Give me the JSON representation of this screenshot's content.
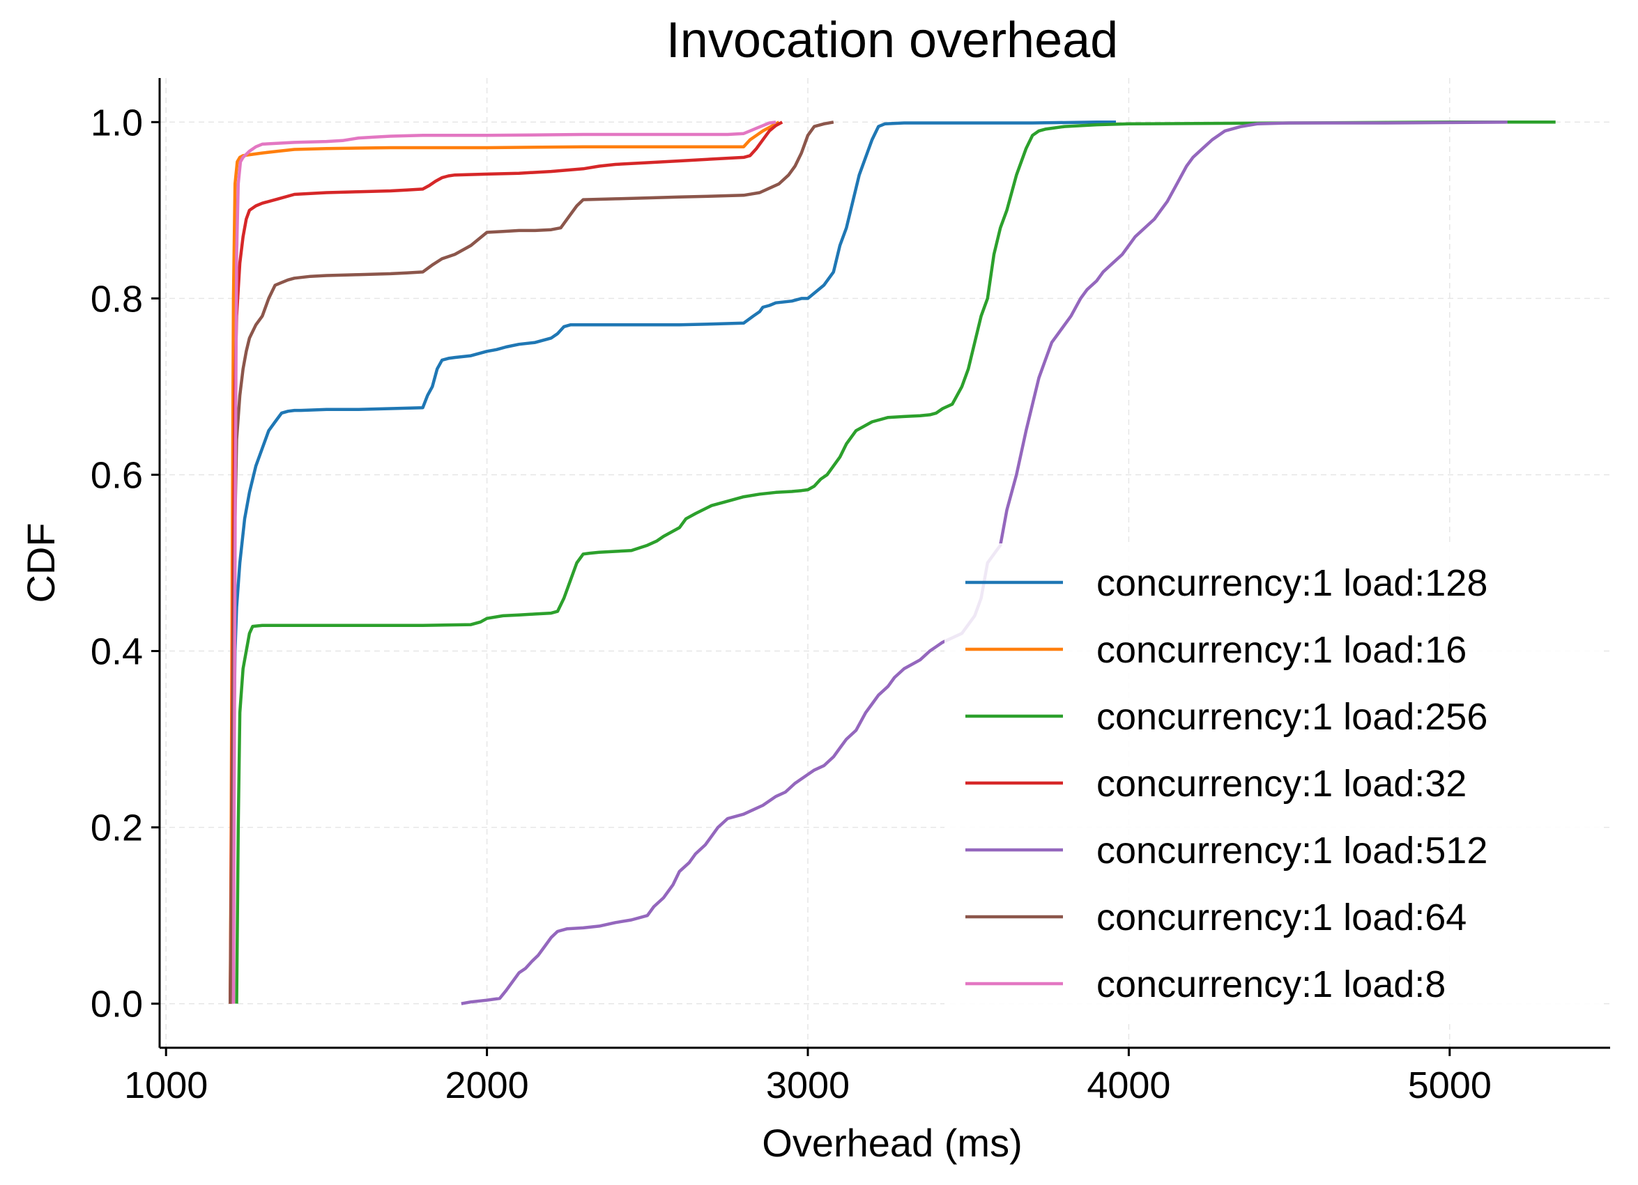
{
  "chart_data": {
    "type": "line",
    "title": "Invocation overhead",
    "xlabel": "Overhead (ms)",
    "ylabel": "CDF",
    "xlim": [
      980,
      5500
    ],
    "ylim": [
      -0.05,
      1.05
    ],
    "xticks": [
      1000,
      2000,
      3000,
      4000,
      5000
    ],
    "xtick_labels": [
      "1000",
      "2000",
      "3000",
      "4000",
      "5000"
    ],
    "yticks": [
      0.0,
      0.2,
      0.4,
      0.6,
      0.8,
      1.0
    ],
    "ytick_labels": [
      "0.0",
      "0.2",
      "0.4",
      "0.6",
      "0.8",
      "1.0"
    ],
    "grid": true,
    "legend_position": "lower-right",
    "series": [
      {
        "name": "concurrency:1 load:128",
        "color": "#1f77b4",
        "x": [
          1200,
          1205,
          1210,
          1215,
          1220,
          1230,
          1245,
          1260,
          1280,
          1300,
          1320,
          1340,
          1360,
          1380,
          1400,
          1420,
          1500,
          1600,
          1700,
          1800,
          1815,
          1830,
          1845,
          1860,
          1880,
          1900,
          1950,
          2000,
          2030,
          2060,
          2100,
          2150,
          2200,
          2220,
          2240,
          2260,
          2300,
          2400,
          2500,
          2600,
          2700,
          2800,
          2830,
          2850,
          2860,
          2880,
          2900,
          2950,
          2980,
          3000,
          3050,
          3080,
          3100,
          3120,
          3140,
          3160,
          3180,
          3200,
          3220,
          3240,
          3300,
          3500,
          3700,
          3900,
          3960
        ],
        "y": [
          0.0,
          0.1,
          0.25,
          0.4,
          0.45,
          0.5,
          0.55,
          0.58,
          0.61,
          0.63,
          0.65,
          0.66,
          0.67,
          0.672,
          0.673,
          0.673,
          0.674,
          0.674,
          0.675,
          0.676,
          0.69,
          0.7,
          0.72,
          0.73,
          0.732,
          0.733,
          0.735,
          0.74,
          0.742,
          0.745,
          0.748,
          0.75,
          0.755,
          0.76,
          0.768,
          0.77,
          0.77,
          0.77,
          0.77,
          0.77,
          0.771,
          0.772,
          0.78,
          0.785,
          0.79,
          0.792,
          0.795,
          0.797,
          0.8,
          0.8,
          0.815,
          0.83,
          0.86,
          0.88,
          0.91,
          0.94,
          0.96,
          0.98,
          0.995,
          0.998,
          0.999,
          0.999,
          0.999,
          1.0,
          1.0
        ]
      },
      {
        "name": "concurrency:1 load:16",
        "color": "#ff7f0e",
        "x": [
          1200,
          1203,
          1206,
          1210,
          1215,
          1222,
          1230,
          1240,
          1260,
          1300,
          1350,
          1400,
          1500,
          1700,
          2000,
          2300,
          2600,
          2800,
          2820,
          2840,
          2860,
          2880,
          2900,
          2910
        ],
        "y": [
          0.0,
          0.2,
          0.5,
          0.8,
          0.93,
          0.955,
          0.96,
          0.962,
          0.963,
          0.965,
          0.967,
          0.969,
          0.97,
          0.971,
          0.971,
          0.972,
          0.972,
          0.972,
          0.98,
          0.985,
          0.99,
          0.994,
          0.998,
          1.0
        ]
      },
      {
        "name": "concurrency:1 load:256",
        "color": "#2ca02c",
        "x": [
          1220,
          1225,
          1230,
          1240,
          1250,
          1260,
          1270,
          1300,
          1500,
          1800,
          1950,
          1980,
          2000,
          2050,
          2100,
          2150,
          2200,
          2220,
          2240,
          2260,
          2280,
          2300,
          2320,
          2350,
          2400,
          2450,
          2500,
          2530,
          2550,
          2600,
          2620,
          2650,
          2700,
          2750,
          2800,
          2850,
          2900,
          2950,
          2980,
          3000,
          3020,
          3040,
          3060,
          3080,
          3100,
          3120,
          3150,
          3200,
          3250,
          3300,
          3350,
          3380,
          3400,
          3420,
          3450,
          3480,
          3500,
          3520,
          3540,
          3560,
          3580,
          3600,
          3620,
          3650,
          3680,
          3700,
          3720,
          3740,
          3760,
          3800,
          3900,
          4000,
          4500,
          5000,
          5330
        ],
        "y": [
          0.0,
          0.2,
          0.33,
          0.38,
          0.4,
          0.42,
          0.428,
          0.429,
          0.429,
          0.429,
          0.43,
          0.433,
          0.437,
          0.44,
          0.441,
          0.442,
          0.443,
          0.445,
          0.46,
          0.48,
          0.5,
          0.51,
          0.511,
          0.512,
          0.513,
          0.514,
          0.52,
          0.525,
          0.53,
          0.54,
          0.55,
          0.556,
          0.565,
          0.57,
          0.575,
          0.578,
          0.58,
          0.581,
          0.582,
          0.583,
          0.587,
          0.595,
          0.6,
          0.61,
          0.62,
          0.635,
          0.65,
          0.66,
          0.665,
          0.666,
          0.667,
          0.668,
          0.67,
          0.675,
          0.68,
          0.7,
          0.72,
          0.75,
          0.78,
          0.8,
          0.85,
          0.88,
          0.9,
          0.94,
          0.97,
          0.985,
          0.99,
          0.992,
          0.993,
          0.995,
          0.997,
          0.998,
          0.999,
          1.0,
          1.0
        ]
      },
      {
        "name": "concurrency:1 load:32",
        "color": "#d62728",
        "x": [
          1200,
          1205,
          1210,
          1215,
          1220,
          1230,
          1240,
          1250,
          1260,
          1280,
          1300,
          1350,
          1400,
          1500,
          1600,
          1700,
          1750,
          1800,
          1820,
          1840,
          1860,
          1880,
          1900,
          2000,
          2100,
          2200,
          2300,
          2350,
          2400,
          2500,
          2600,
          2700,
          2800,
          2820,
          2840,
          2860,
          2880,
          2900,
          2920
        ],
        "y": [
          0.0,
          0.25,
          0.5,
          0.7,
          0.78,
          0.84,
          0.87,
          0.89,
          0.9,
          0.905,
          0.908,
          0.913,
          0.918,
          0.92,
          0.921,
          0.922,
          0.923,
          0.924,
          0.928,
          0.933,
          0.937,
          0.939,
          0.94,
          0.941,
          0.942,
          0.944,
          0.947,
          0.95,
          0.952,
          0.954,
          0.956,
          0.958,
          0.96,
          0.962,
          0.97,
          0.98,
          0.99,
          0.996,
          1.0
        ]
      },
      {
        "name": "concurrency:1 load:512",
        "color": "#9467bd",
        "x": [
          1920,
          1950,
          2000,
          2040,
          2060,
          2080,
          2100,
          2120,
          2140,
          2160,
          2180,
          2200,
          2220,
          2250,
          2300,
          2350,
          2400,
          2450,
          2500,
          2520,
          2550,
          2580,
          2600,
          2630,
          2650,
          2680,
          2700,
          2720,
          2750,
          2800,
          2830,
          2860,
          2900,
          2930,
          2960,
          3000,
          3020,
          3050,
          3080,
          3100,
          3120,
          3150,
          3180,
          3200,
          3220,
          3250,
          3270,
          3300,
          3350,
          3380,
          3400,
          3420,
          3450,
          3480,
          3500,
          3520,
          3530,
          3540,
          3560,
          3580,
          3600,
          3620,
          3650,
          3680,
          3700,
          3720,
          3740,
          3760,
          3780,
          3800,
          3820,
          3850,
          3870,
          3900,
          3920,
          3950,
          3980,
          4000,
          4020,
          4050,
          4080,
          4100,
          4120,
          4150,
          4180,
          4200,
          4230,
          4260,
          4300,
          4350,
          4400,
          4500,
          4800,
          5180
        ],
        "y": [
          0.0,
          0.002,
          0.004,
          0.006,
          0.015,
          0.025,
          0.035,
          0.04,
          0.048,
          0.055,
          0.065,
          0.075,
          0.082,
          0.085,
          0.086,
          0.088,
          0.092,
          0.095,
          0.1,
          0.11,
          0.12,
          0.135,
          0.15,
          0.16,
          0.17,
          0.18,
          0.19,
          0.2,
          0.21,
          0.215,
          0.22,
          0.225,
          0.235,
          0.24,
          0.25,
          0.26,
          0.265,
          0.27,
          0.28,
          0.29,
          0.3,
          0.31,
          0.33,
          0.34,
          0.35,
          0.36,
          0.37,
          0.38,
          0.39,
          0.4,
          0.405,
          0.41,
          0.415,
          0.42,
          0.43,
          0.44,
          0.45,
          0.46,
          0.5,
          0.51,
          0.52,
          0.56,
          0.6,
          0.65,
          0.68,
          0.71,
          0.73,
          0.75,
          0.76,
          0.77,
          0.78,
          0.8,
          0.81,
          0.82,
          0.83,
          0.84,
          0.85,
          0.86,
          0.87,
          0.88,
          0.89,
          0.9,
          0.91,
          0.93,
          0.95,
          0.96,
          0.97,
          0.98,
          0.99,
          0.995,
          0.998,
          0.999,
          0.999,
          1.0
        ]
      },
      {
        "name": "concurrency:1 load:64",
        "color": "#8c564b",
        "x": [
          1200,
          1205,
          1210,
          1215,
          1220,
          1230,
          1240,
          1250,
          1260,
          1280,
          1300,
          1320,
          1340,
          1360,
          1380,
          1400,
          1450,
          1500,
          1600,
          1700,
          1750,
          1800,
          1830,
          1860,
          1900,
          1950,
          2000,
          2050,
          2100,
          2150,
          2200,
          2230,
          2260,
          2280,
          2300,
          2400,
          2500,
          2600,
          2700,
          2800,
          2850,
          2880,
          2910,
          2940,
          2960,
          2980,
          3000,
          3020,
          3050,
          3080
        ],
        "y": [
          0.0,
          0.2,
          0.4,
          0.55,
          0.64,
          0.69,
          0.72,
          0.74,
          0.755,
          0.77,
          0.78,
          0.8,
          0.815,
          0.818,
          0.821,
          0.823,
          0.825,
          0.826,
          0.827,
          0.828,
          0.829,
          0.83,
          0.838,
          0.845,
          0.85,
          0.86,
          0.875,
          0.876,
          0.877,
          0.877,
          0.878,
          0.88,
          0.895,
          0.905,
          0.912,
          0.913,
          0.914,
          0.915,
          0.916,
          0.917,
          0.92,
          0.925,
          0.93,
          0.94,
          0.95,
          0.965,
          0.985,
          0.995,
          0.998,
          1.0
        ]
      },
      {
        "name": "concurrency:1 load:8",
        "color": "#e377c2",
        "x": [
          1210,
          1213,
          1216,
          1220,
          1225,
          1232,
          1240,
          1260,
          1280,
          1300,
          1350,
          1400,
          1500,
          1550,
          1600,
          1650,
          1700,
          1800,
          2000,
          2300,
          2600,
          2750,
          2800,
          2820,
          2840,
          2860,
          2880,
          2900
        ],
        "y": [
          0.0,
          0.3,
          0.6,
          0.85,
          0.93,
          0.955,
          0.96,
          0.967,
          0.972,
          0.975,
          0.976,
          0.977,
          0.978,
          0.979,
          0.982,
          0.983,
          0.984,
          0.985,
          0.985,
          0.986,
          0.986,
          0.986,
          0.987,
          0.99,
          0.993,
          0.996,
          0.999,
          1.0
        ]
      }
    ]
  }
}
